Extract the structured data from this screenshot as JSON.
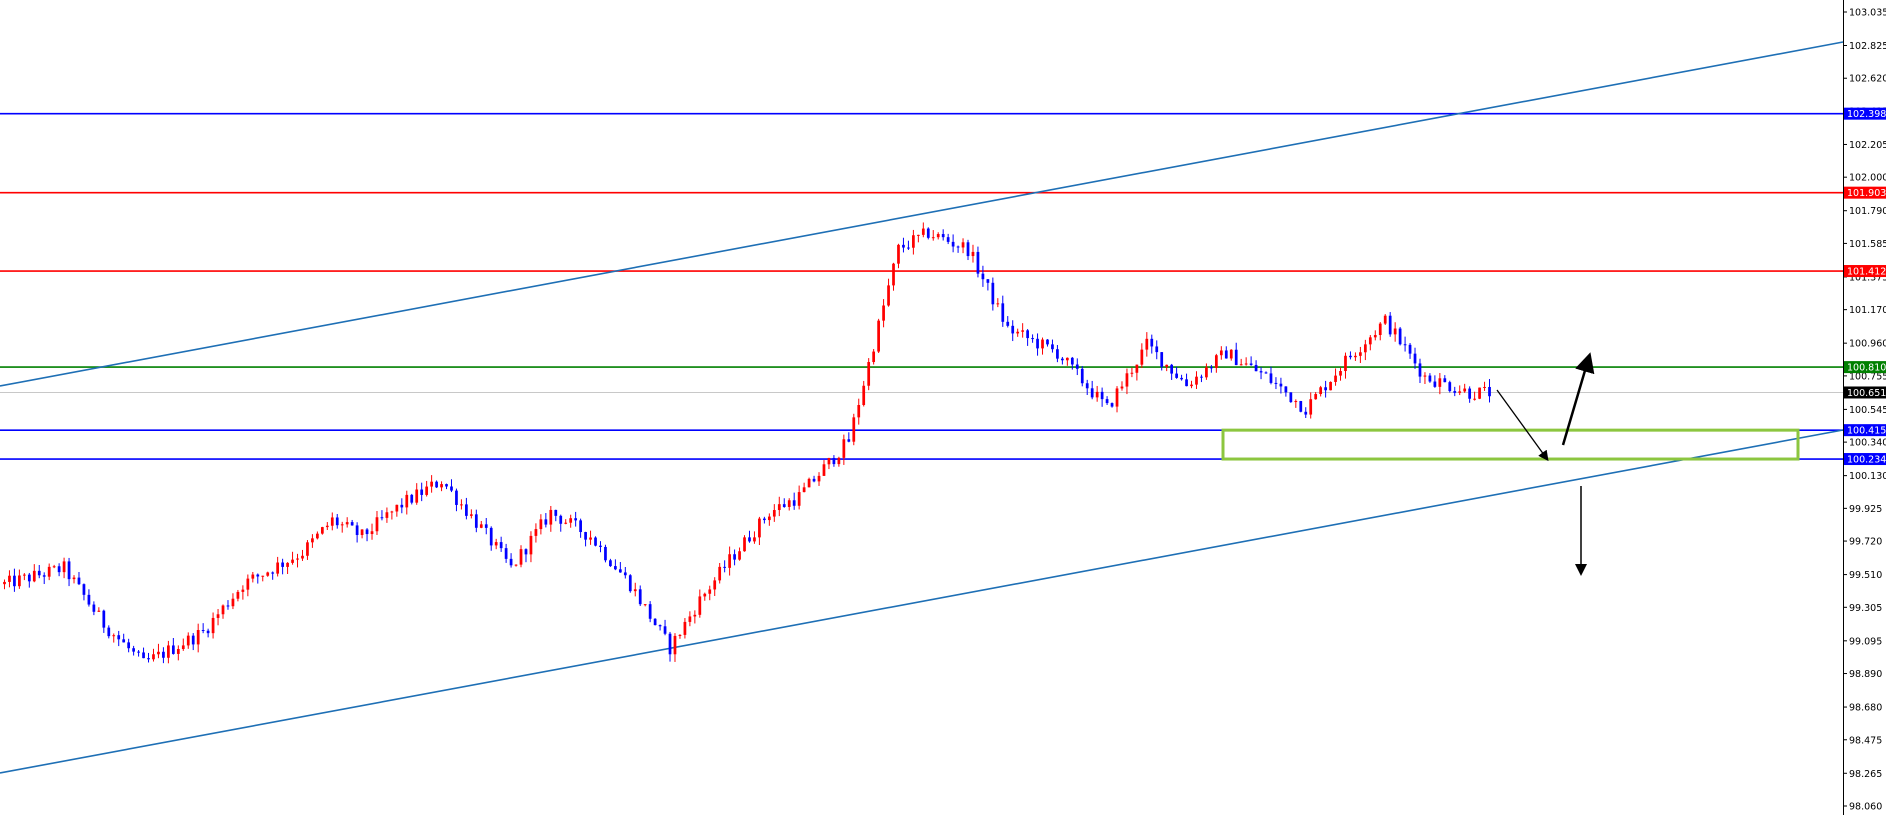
{
  "chart_data": {
    "type": "candlestick",
    "title": "",
    "xlabel": "",
    "ylabel": "",
    "ylim": [
      98.0,
      103.1
    ],
    "y_ticks": [
      "103.035",
      "102.825",
      "102.620",
      "102.415",
      "102.205",
      "102.000",
      "101.790",
      "101.585",
      "101.375",
      "101.170",
      "100.960",
      "100.755",
      "100.545",
      "100.340",
      "100.130",
      "99.925",
      "99.720",
      "99.510",
      "99.305",
      "99.095",
      "98.890",
      "98.680",
      "98.475",
      "98.265",
      "98.060"
    ],
    "current_price": {
      "value": 100.651,
      "label": "100.651",
      "color": "#000000"
    },
    "bull_color": "#ff0000",
    "bear_color": "#0000ff",
    "candle_count": 300,
    "price_path_close": [
      [
        0,
        99.45
      ],
      [
        12,
        99.55
      ],
      [
        20,
        99.2
      ],
      [
        28,
        98.95
      ],
      [
        40,
        99.15
      ],
      [
        48,
        99.45
      ],
      [
        60,
        99.65
      ],
      [
        66,
        99.85
      ],
      [
        72,
        99.75
      ],
      [
        80,
        99.95
      ],
      [
        88,
        100.1
      ],
      [
        96,
        99.8
      ],
      [
        102,
        99.55
      ],
      [
        110,
        99.9
      ],
      [
        118,
        99.75
      ],
      [
        126,
        99.45
      ],
      [
        134,
        99.05
      ],
      [
        140,
        99.35
      ],
      [
        146,
        99.6
      ],
      [
        154,
        99.9
      ],
      [
        160,
        100.0
      ],
      [
        170,
        100.35
      ],
      [
        180,
        101.55
      ],
      [
        186,
        101.65
      ],
      [
        194,
        101.55
      ],
      [
        202,
        101.05
      ],
      [
        212,
        100.9
      ],
      [
        222,
        100.55
      ],
      [
        230,
        100.95
      ],
      [
        238,
        100.7
      ],
      [
        246,
        100.9
      ],
      [
        254,
        100.75
      ],
      [
        262,
        100.55
      ],
      [
        270,
        100.85
      ],
      [
        278,
        101.1
      ],
      [
        286,
        100.75
      ],
      [
        295,
        100.65
      ]
    ],
    "horizontal_levels": [
      {
        "value": 102.398,
        "label": "102.398",
        "color": "#0000ff"
      },
      {
        "value": 101.903,
        "label": "101.903",
        "color": "#ff0000"
      },
      {
        "value": 101.412,
        "label": "101.412",
        "color": "#ff0000"
      },
      {
        "value": 100.81,
        "label": "100.810",
        "color": "#008000"
      },
      {
        "value": 100.415,
        "label": "100.415",
        "color": "#0000ff"
      },
      {
        "value": 100.234,
        "label": "100.234",
        "color": "#0000ff"
      }
    ],
    "channel_lines": [
      {
        "name": "upper",
        "color": "#1e6fb5"
      },
      {
        "name": "lower",
        "color": "#1e6fb5"
      }
    ],
    "support_zone": {
      "top": 100.415,
      "bottom": 100.234,
      "color": "#8cc63f"
    },
    "projection_arrows": [
      {
        "name": "down-to-zone",
        "color": "#000000"
      },
      {
        "name": "up-target",
        "color": "#000000"
      },
      {
        "name": "down-target",
        "color": "#000000"
      }
    ],
    "axis_background": "#ffffff",
    "grid": false
  }
}
